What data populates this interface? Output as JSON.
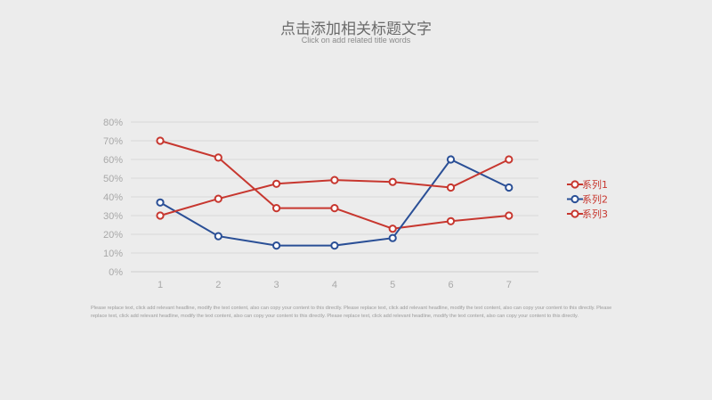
{
  "header": {
    "title": "点击添加相关标题文字",
    "subtitle": "Click on add related title words"
  },
  "body_text": "Please replace text, click add relevant headline, modify the text content, also can copy your content to this directly. Please replace text, click add relevant headline, modify the text content, also can copy your content to this directly. Please replace text, click add relevant headline, modify the text content, also can copy your content to this directly. Please replace text, click add relevant headline, modify the text content, also can copy your content to this directly.",
  "colors": {
    "red": "#c7372f",
    "blue": "#2a4f96",
    "grid": "#d2d2d2",
    "background": "#ececec"
  },
  "chart_data": {
    "type": "line",
    "x": [
      1,
      2,
      3,
      4,
      5,
      6,
      7
    ],
    "ylim": [
      0,
      80
    ],
    "yticks": [
      0,
      10,
      20,
      30,
      40,
      50,
      60,
      70,
      80
    ],
    "y_format": "percent",
    "grid": true,
    "legend_position": "right",
    "series": [
      {
        "name": "系列1",
        "color": "#c7372f",
        "values": [
          30,
          39,
          47,
          49,
          48,
          45,
          60
        ]
      },
      {
        "name": "系列2",
        "color": "#2a4f96",
        "values": [
          37,
          19,
          14,
          14,
          18,
          60,
          45
        ]
      },
      {
        "name": "系列3",
        "color": "#c7372f",
        "values": [
          70,
          61,
          34,
          34,
          23,
          27,
          30
        ]
      }
    ]
  }
}
